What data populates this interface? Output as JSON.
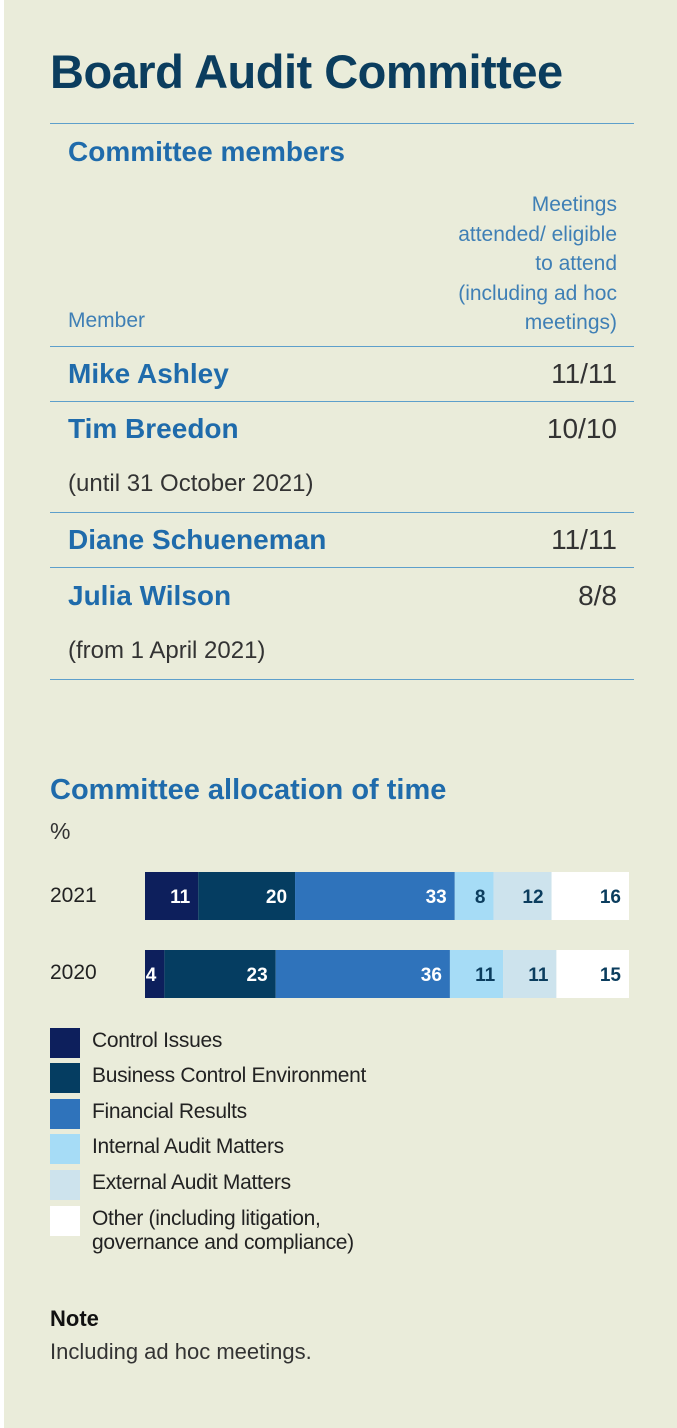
{
  "title": "Board Audit Committee",
  "members": {
    "heading": "Committee members",
    "col_member": "Member",
    "col_meetings_lines": [
      "Meetings",
      "attended/ eligible",
      "to attend",
      "(including ad hoc",
      "meetings)"
    ],
    "rows": [
      {
        "name": "Mike Ashley",
        "attendance": "11/11",
        "note": ""
      },
      {
        "name": "Tim Breedon",
        "attendance": "10/10",
        "note": "(until 31 October 2021)"
      },
      {
        "name": "Diane Schueneman",
        "attendance": "11/11",
        "note": ""
      },
      {
        "name": "Julia Wilson",
        "attendance": "8/8",
        "note": "(from 1 April 2021)"
      }
    ]
  },
  "chart_data": {
    "type": "bar",
    "stacked": true,
    "orientation": "horizontal",
    "title": "Committee allocation of time",
    "unit_label": "%",
    "categories": [
      "2021",
      "2020"
    ],
    "series": [
      {
        "name": "Control Issues",
        "color": "#0d1f5c",
        "label_color": "#ffffff",
        "values": [
          11,
          4
        ]
      },
      {
        "name": "Business Control Environment",
        "color": "#053d61",
        "label_color": "#ffffff",
        "values": [
          20,
          23
        ]
      },
      {
        "name": "Financial Results",
        "color": "#2f73bb",
        "label_color": "#ffffff",
        "values": [
          33,
          36
        ]
      },
      {
        "name": "Internal Audit Matters",
        "color": "#a6dcf6",
        "label_color": "#0b3d5e",
        "values": [
          8,
          11
        ]
      },
      {
        "name": "External Audit Matters",
        "color": "#cde3ed",
        "label_color": "#0b3d5e",
        "values": [
          12,
          11
        ]
      },
      {
        "name": "Other (including litigation, governance and compliance)",
        "color": "#ffffff",
        "label_color": "#0b3d5e",
        "values": [
          16,
          15
        ]
      }
    ],
    "legend_labels": [
      "Control Issues",
      "Business Control Environment",
      "Financial Results",
      "Internal Audit Matters",
      "External Audit Matters",
      "Other (including litigation,\ngovernance and compliance)"
    ]
  },
  "note": {
    "title": "Note",
    "text": "Including ad hoc meetings."
  }
}
